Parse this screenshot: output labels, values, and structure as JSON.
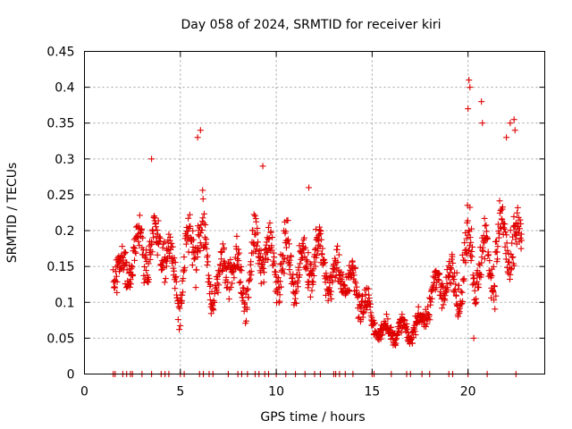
{
  "chart_data": {
    "type": "scatter",
    "title": "Day 058 of 2024, SRMTID for receiver kiri",
    "xlabel": "GPS time / hours",
    "ylabel": "SRMTID / TECUs",
    "xlim": [
      0,
      24
    ],
    "ylim": [
      0,
      0.45
    ],
    "xticks": [
      0,
      5,
      10,
      15,
      20
    ],
    "xtick_labels": [
      "0",
      "5",
      "10",
      "15",
      "20"
    ],
    "yticks": [
      0,
      0.05,
      0.1,
      0.15,
      0.2,
      0.25,
      0.3,
      0.35,
      0.4,
      0.45
    ],
    "ytick_labels": [
      "0",
      "0.05",
      "0.1",
      "0.15",
      "0.2",
      "0.25",
      "0.3",
      "0.35",
      "0.4",
      "0.45"
    ],
    "grid": true,
    "marker": "plus",
    "series_color": "#e00000",
    "profile": {
      "x": [
        1.5,
        2.0,
        2.5,
        3.0,
        3.5,
        4.0,
        4.5,
        5.0,
        5.5,
        6.0,
        6.5,
        7.0,
        7.5,
        8.0,
        8.5,
        9.0,
        9.5,
        10.0,
        10.5,
        11.0,
        11.5,
        12.0,
        12.5,
        13.0,
        13.5,
        14.0,
        14.5,
        15.0,
        15.5,
        16.0,
        16.5,
        17.0,
        17.5,
        18.0,
        18.5,
        19.0,
        19.5,
        20.0,
        20.5,
        21.0,
        21.5,
        22.0,
        22.5
      ],
      "y": [
        0.15,
        0.14,
        0.16,
        0.18,
        0.17,
        0.19,
        0.15,
        0.11,
        0.18,
        0.2,
        0.13,
        0.12,
        0.17,
        0.13,
        0.12,
        0.18,
        0.17,
        0.15,
        0.16,
        0.14,
        0.15,
        0.17,
        0.15,
        0.13,
        0.14,
        0.12,
        0.11,
        0.07,
        0.06,
        0.06,
        0.06,
        0.06,
        0.07,
        0.1,
        0.13,
        0.13,
        0.12,
        0.17,
        0.15,
        0.16,
        0.17,
        0.19,
        0.17
      ],
      "spread": [
        0.03,
        0.04,
        0.04,
        0.05,
        0.05,
        0.05,
        0.04,
        0.05,
        0.06,
        0.07,
        0.04,
        0.04,
        0.05,
        0.05,
        0.04,
        0.06,
        0.05,
        0.05,
        0.05,
        0.04,
        0.05,
        0.05,
        0.04,
        0.04,
        0.04,
        0.04,
        0.04,
        0.02,
        0.02,
        0.02,
        0.02,
        0.02,
        0.02,
        0.03,
        0.04,
        0.04,
        0.05,
        0.07,
        0.06,
        0.06,
        0.07,
        0.07,
        0.06
      ]
    },
    "data_range_x": [
      1.5,
      22.8
    ],
    "outliers": {
      "x": [
        3.5,
        5.9,
        6.05,
        9.3,
        11.7,
        20.05,
        20.1,
        20.0,
        20.3,
        20.7,
        20.75,
        22.0,
        22.2,
        22.4,
        22.45
      ],
      "y": [
        0.3,
        0.33,
        0.34,
        0.29,
        0.26,
        0.41,
        0.4,
        0.37,
        0.05,
        0.38,
        0.35,
        0.33,
        0.35,
        0.355,
        0.34
      ]
    },
    "zero_points": {
      "x": [
        1.5,
        1.6,
        2.0,
        2.2,
        2.4,
        2.5,
        3.0,
        3.5,
        4.0,
        4.2,
        4.4,
        5.0,
        5.2,
        6.0,
        6.2,
        6.5,
        6.7,
        7.5,
        8.0,
        8.2,
        8.5,
        8.9,
        9.1,
        9.4,
        9.6,
        10.0,
        10.5,
        11.0,
        11.5,
        12.0,
        12.3,
        13.0,
        13.1,
        13.3,
        13.6,
        14.0,
        15.0,
        15.1,
        16.0,
        16.8,
        17.0,
        17.6,
        18.0,
        19.0,
        19.2,
        20.0,
        21.0,
        22.5
      ],
      "y": 0
    }
  }
}
